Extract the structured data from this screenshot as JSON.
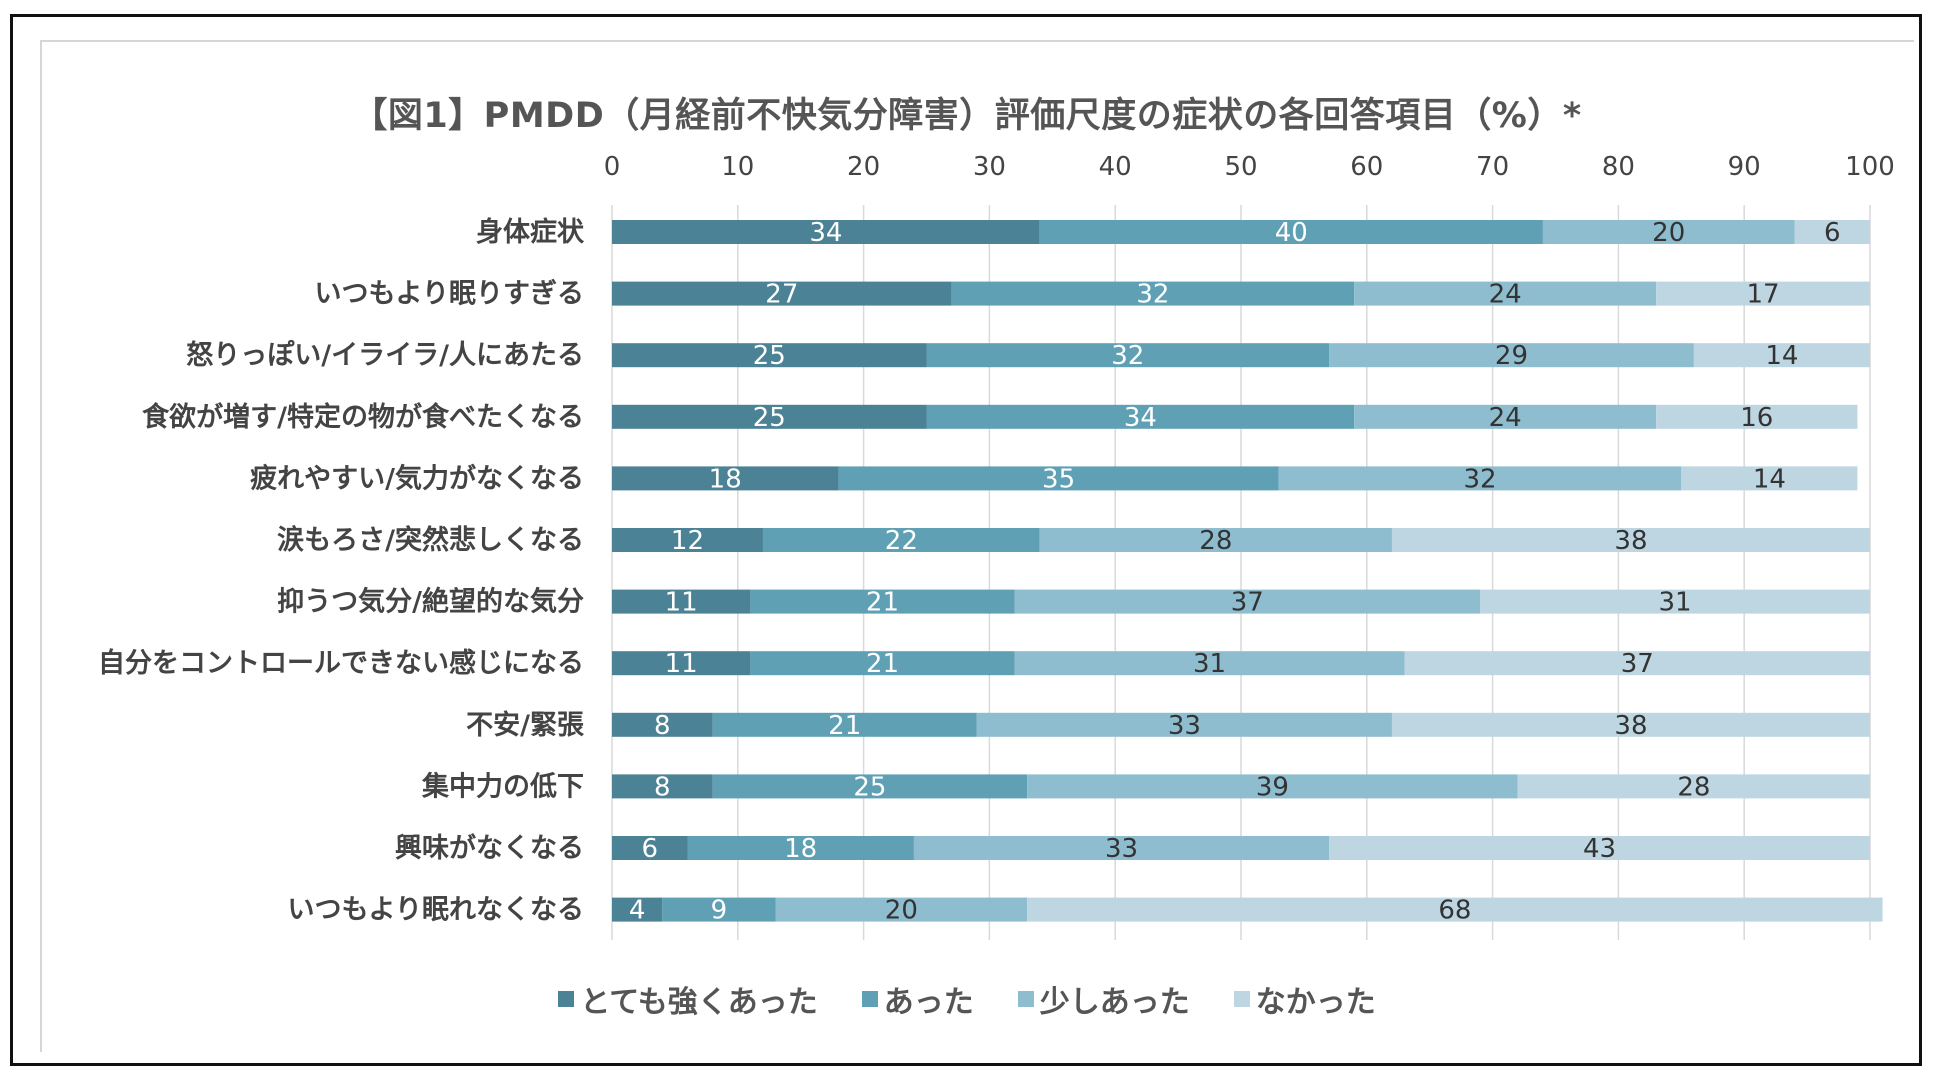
{
  "title": "【図1】PMDD（月経前不快気分障害）評価尺度の症状の各回答項目（%）*",
  "colors": {
    "s1": "#4c8295",
    "s2": "#5fa0b5",
    "s3": "#8dbdcf",
    "s4": "#bdd6e1",
    "grid": "#d9d9d9"
  },
  "chart_data": {
    "type": "bar",
    "orientation": "horizontal-stacked",
    "title": "【図1】PMDD（月経前不快気分障害）評価尺度の症状の各回答項目（%）*",
    "xlim": [
      0,
      100
    ],
    "xticks": [
      "0",
      "10",
      "20",
      "30",
      "40",
      "50",
      "60",
      "70",
      "80",
      "90",
      "100"
    ],
    "xaxis_position": "top",
    "grid": true,
    "legend_position": "bottom",
    "categories": [
      "身体症状",
      "いつもより眠りすぎる",
      "怒りっぽい/イライラ/人にあたる",
      "食欲が増す/特定の物が食べたくなる",
      "疲れやすい/気力がなくなる",
      "涙もろさ/突然悲しくなる",
      "抑うつ気分/絶望的な気分",
      "自分をコントロールできない感じになる",
      "不安/緊張",
      "集中力の低下",
      "興味がなくなる",
      "いつもより眠れなくなる"
    ],
    "series": [
      {
        "name": "とても強くあった",
        "values": [
          34,
          27,
          25,
          25,
          18,
          12,
          11,
          11,
          8,
          8,
          6,
          4
        ]
      },
      {
        "name": "あった",
        "values": [
          40,
          32,
          32,
          34,
          35,
          22,
          21,
          21,
          21,
          25,
          18,
          9
        ]
      },
      {
        "name": "少しあった",
        "values": [
          20,
          24,
          29,
          24,
          32,
          28,
          37,
          31,
          33,
          39,
          33,
          20
        ]
      },
      {
        "name": "なかった",
        "values": [
          6,
          17,
          14,
          16,
          14,
          38,
          31,
          37,
          38,
          28,
          43,
          68
        ]
      }
    ]
  }
}
